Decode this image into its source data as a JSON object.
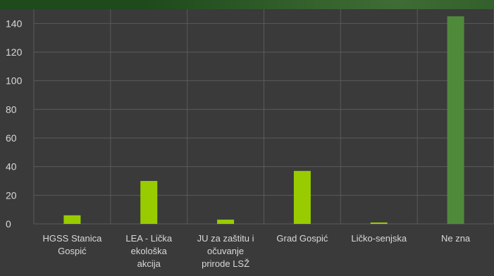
{
  "chart_data": {
    "type": "bar",
    "title": "",
    "xlabel": "",
    "ylabel": "",
    "categories": [
      [
        "HGSS Stanica",
        "Gospić"
      ],
      [
        "LEA - Lička",
        "ekološka",
        "akcija"
      ],
      [
        "JU za zaštitu i",
        "očuvanje",
        "prirode LSŽ"
      ],
      [
        "Grad Gospić"
      ],
      [
        "Ličko-senjska"
      ],
      [
        "Ne zna"
      ]
    ],
    "values": [
      6,
      30,
      3,
      37,
      1,
      145
    ],
    "bar_colors": [
      "#99cc00",
      "#99cc00",
      "#99cc00",
      "#99cc00",
      "#99cc00",
      "#4f8a3a"
    ],
    "ylim": [
      0,
      150
    ],
    "yticks": [
      0,
      20,
      40,
      60,
      80,
      100,
      120,
      140
    ],
    "grid": true,
    "legend": "none",
    "colors": {
      "plot_background": "#3a3a3a",
      "gridline": "#5a5a5a",
      "tick_text": "#d9d9d9"
    }
  }
}
